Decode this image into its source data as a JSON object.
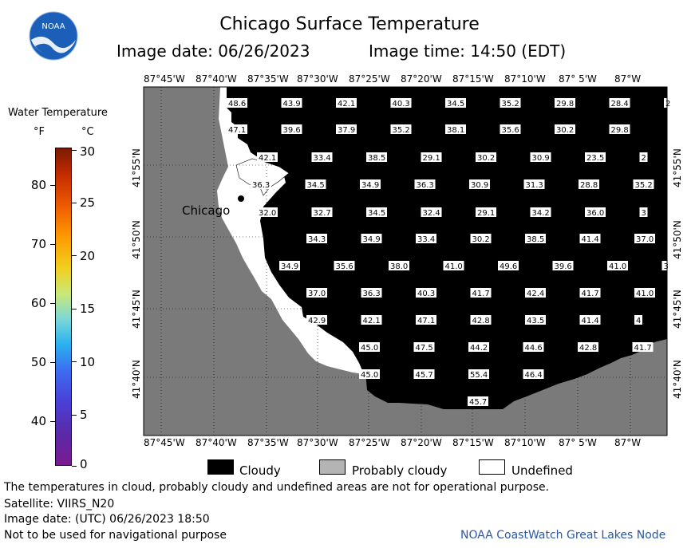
{
  "header": {
    "title": "Chicago Surface Temperature",
    "image_date": "Image date: 06/26/2023",
    "image_time": "Image time: 14:50 (EDT)",
    "logo_text": "NOAA"
  },
  "legend": {
    "title": "Water Temperature",
    "unit_f": "°F",
    "unit_c": "°C",
    "f_ticks": [
      "80",
      "70",
      "60",
      "50",
      "40"
    ],
    "c_ticks": [
      "30",
      "25",
      "20",
      "15",
      "10",
      "5",
      "0"
    ]
  },
  "map": {
    "city_label": "Chicago",
    "lon_labels": [
      "87°45'W",
      "87°40'W",
      "87°35'W",
      "87°30'W",
      "87°25'W",
      "87°20'W",
      "87°15'W",
      "87°10'W",
      "87° 5'W",
      "87°W"
    ],
    "lat_labels": [
      "41°55'N",
      "41°50'N",
      "41°45'N",
      "41°40'N"
    ],
    "temperature_rows": [
      [
        "48.6",
        "43.9",
        "42.1",
        "40.3",
        "34.5",
        "35.2",
        "29.8",
        "28.4",
        "2"
      ],
      [
        "47.1",
        "39.6",
        "37.9",
        "35.2",
        "38.1",
        "35.6",
        "30.2",
        "29.8",
        ""
      ],
      [
        "42.1",
        "33.4",
        "38.5",
        "29.1",
        "30.2",
        "30.9",
        "23.5",
        "2",
        ""
      ],
      [
        "36.3",
        "34.5",
        "34.9",
        "36.3",
        "30.9",
        "31.3",
        "28.8",
        "35.2",
        ""
      ],
      [
        "32.0",
        "32.7",
        "34.5",
        "32.4",
        "29.1",
        "34.2",
        "36.0",
        "3",
        ""
      ],
      [
        "34.3",
        "34.9",
        "33.4",
        "30.2",
        "38.5",
        "41.4",
        "37.0",
        "",
        ""
      ],
      [
        "34.9",
        "35.6",
        "38.0",
        "41.0",
        "49.6",
        "39.6",
        "41.0",
        "3",
        ""
      ],
      [
        "37.0",
        "36.3",
        "40.3",
        "41.7",
        "42.4",
        "41.7",
        "41.0",
        "",
        ""
      ],
      [
        "42.9",
        "42.1",
        "47.1",
        "42.8",
        "43.5",
        "41.4",
        "4",
        "",
        ""
      ],
      [
        "45.0",
        "47.5",
        "44.2",
        "44.6",
        "42.8",
        "41.7",
        "",
        "",
        ""
      ],
      [
        "45.0",
        "45.7",
        "55.4",
        "46.4",
        "",
        "",
        "",
        "",
        ""
      ],
      [
        "45.7",
        "",
        "",
        "",
        "",
        "",
        "",
        "",
        ""
      ]
    ]
  },
  "key": {
    "cloudy": "Cloudy",
    "probably_cloudy": "Probably cloudy",
    "undefined": "Undefined",
    "colors": {
      "cloudy": "#000000",
      "probably_cloudy": "#b4b4b4",
      "undefined": "#ffffff",
      "land": "#7a7a7a"
    }
  },
  "footer": {
    "note": "The temperatures in cloud, probably cloudy and undefined areas are not for operational purpose.",
    "satellite": "Satellite: VIIRS_N20",
    "utc_date": "Image date: (UTC) 06/26/2023  18:50",
    "navigation": "Not to be used for navigational purpose",
    "node": "NOAA CoastWatch Great Lakes Node"
  }
}
